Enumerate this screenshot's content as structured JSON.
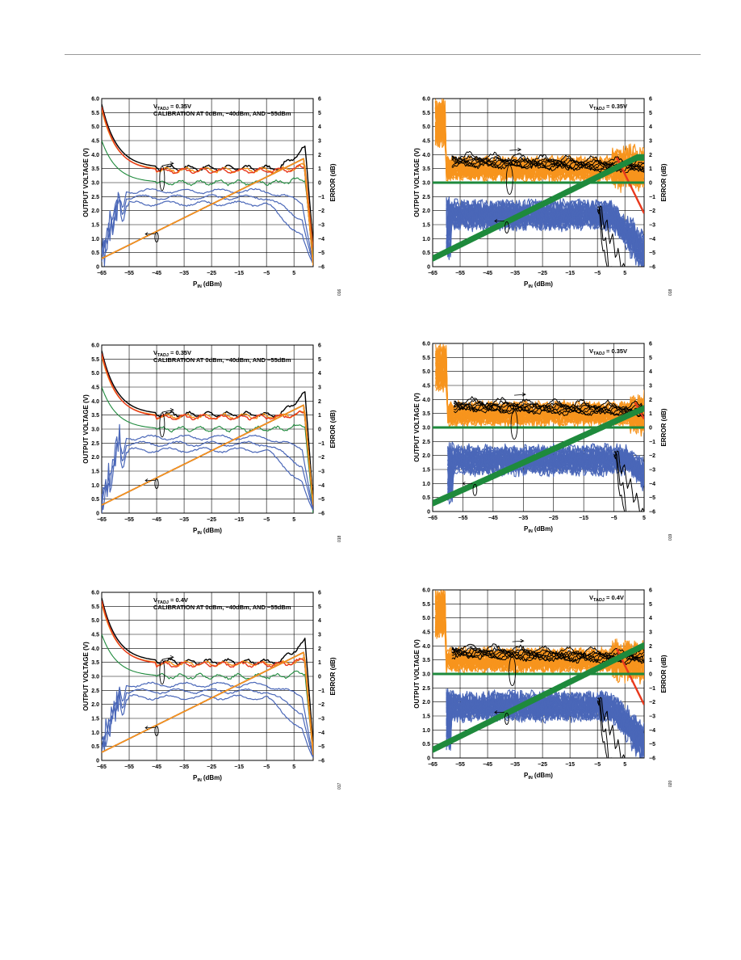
{
  "colors": {
    "black": "#000000",
    "orange": "#f7941d",
    "red": "#e8391d",
    "green": "#1e8a3c",
    "blue": "#4a67b8",
    "grid": "#000000"
  },
  "chart_data": [
    {
      "id": "c1",
      "type": "line",
      "variant": "cal",
      "vtadj_sub": "TADJ",
      "vtadj_value": "= 0.35V",
      "title_line2": "CALIBRATION AT 0dBm, −40dBm, AND −55dBm",
      "xlabel_sub": "IN",
      "xlabel_suffix": "(dBm)",
      "ylabel": "OUTPUT VOLTAGE (V)",
      "y2label": "ERROR (dB)",
      "xlim": [
        -65,
        12
      ],
      "ylim": [
        0,
        6
      ],
      "y2lim": [
        -6,
        6
      ],
      "x_ticks": [
        "−65",
        "−55",
        "−45",
        "−35",
        "−25",
        "−15",
        "−5",
        "5"
      ],
      "x_tick_values": [
        -65,
        -55,
        -45,
        -35,
        -25,
        -15,
        -5,
        5
      ],
      "y_ticks": [
        "0",
        "0.5",
        "1.0",
        "1.5",
        "2.0",
        "2.5",
        "3.0",
        "3.5",
        "4.0",
        "4.5",
        "5.0",
        "5.5",
        "6.0"
      ],
      "y2_ticks": [
        "−6",
        "−5",
        "−4",
        "−3",
        "−2",
        "−1",
        "0",
        "1",
        "2",
        "3",
        "4",
        "5",
        "6"
      ],
      "sat": 3.9,
      "drop": 0.05,
      "err_end": 1.1,
      "figure_code": "016"
    },
    {
      "id": "c2",
      "type": "line",
      "variant": "dist",
      "vtadj_sub": "TADJ",
      "vtadj_value": "= 0.35V",
      "xlabel_sub": "IN",
      "xlabel_suffix": "(dBm)",
      "ylabel": "OUTPUT VOLTAGE (V)",
      "y2label": "ERROR (dB)",
      "xlim": [
        -65,
        12
      ],
      "ylim": [
        0,
        6
      ],
      "y2lim": [
        -6,
        6
      ],
      "x_ticks": [
        "−65",
        "−55",
        "−45",
        "−35",
        "−25",
        "−15",
        "−5",
        "5"
      ],
      "x_tick_values": [
        -65,
        -55,
        -45,
        -35,
        -25,
        -15,
        -5,
        5
      ],
      "y_ticks": [
        "0",
        "0.5",
        "1.0",
        "1.5",
        "2.0",
        "2.5",
        "3.0",
        "3.5",
        "4.0",
        "4.5",
        "5.0",
        "5.5",
        "6.0"
      ],
      "y2_ticks": [
        "−6",
        "−5",
        "−4",
        "−3",
        "−2",
        "−1",
        "0",
        "1",
        "2",
        "3",
        "4",
        "5",
        "6"
      ],
      "sat": 3.9,
      "figure_code": "018"
    },
    {
      "id": "c3",
      "type": "line",
      "variant": "cal",
      "vtadj_sub": "TADJ",
      "vtadj_value": "= 0.35V",
      "title_line2": "CALIBRATION AT 0dBm, −40dBm, AND −55dBm",
      "xlabel_sub": "IN",
      "xlabel_suffix": "(dBm)",
      "ylabel": "OUTPUT VOLTAGE (V)",
      "y2label": "ERROR (dB)",
      "xlim": [
        -65,
        12
      ],
      "ylim": [
        0,
        6
      ],
      "y2lim": [
        -6,
        6
      ],
      "x_ticks": [
        "−65",
        "−55",
        "−45",
        "−35",
        "−25",
        "−15",
        "−5",
        "5"
      ],
      "x_tick_values": [
        -65,
        -55,
        -45,
        -35,
        -25,
        -15,
        -5,
        5
      ],
      "y_ticks": [
        "0",
        "0.5",
        "1.0",
        "1.5",
        "2.0",
        "2.5",
        "3.0",
        "3.5",
        "4.0",
        "4.5",
        "5.0",
        "5.5",
        "6.0"
      ],
      "y2_ticks": [
        "−6",
        "−5",
        "−4",
        "−3",
        "−2",
        "−1",
        "0",
        "1",
        "2",
        "3",
        "4",
        "5",
        "6"
      ],
      "sat": 3.9,
      "drop": 0.3,
      "err_end": 0.3,
      "figure_code": "018"
    },
    {
      "id": "c4",
      "type": "line",
      "variant": "dist",
      "vtadj_sub": "TADJ",
      "vtadj_value": "= 0.35V",
      "xlabel_sub": "IN",
      "xlabel_suffix": "(dBm)",
      "ylabel": "OUTPUT VOLTAGE (V)",
      "y2label": "ERROR (dB)",
      "xlim": [
        -65,
        5
      ],
      "ylim": [
        0,
        6
      ],
      "y2lim": [
        -6,
        6
      ],
      "x_ticks": [
        "−65",
        "−55",
        "−45",
        "−35",
        "−25",
        "−15",
        "−5",
        "5"
      ],
      "x_tick_values": [
        -65,
        -55,
        -45,
        -35,
        -25,
        -15,
        -5,
        5
      ],
      "y_ticks": [
        "0",
        "0.5",
        "1.0",
        "1.5",
        "2.0",
        "2.5",
        "3.0",
        "3.5",
        "4.0",
        "4.5",
        "5.0",
        "5.5",
        "6.0"
      ],
      "y2_ticks": [
        "−6",
        "−5",
        "−4",
        "−3",
        "−2",
        "−1",
        "0",
        "1",
        "2",
        "3",
        "4",
        "5",
        "6"
      ],
      "sat": 3.9,
      "figure_code": "019"
    },
    {
      "id": "c5",
      "type": "line",
      "variant": "cal",
      "vtadj_sub": "TADJ",
      "vtadj_value": "= 0.4V",
      "title_line2": "CALIBRATION AT 0dBm, −40dBm, AND −55dBm",
      "xlabel_sub": "IN",
      "xlabel_suffix": "(dBm)",
      "ylabel": "OUTPUT VOLTAGE (V)",
      "y2label": "ERROR (dB)",
      "xlim": [
        -65,
        12
      ],
      "ylim": [
        0,
        6
      ],
      "y2lim": [
        -6,
        6
      ],
      "x_ticks": [
        "−65",
        "−55",
        "−45",
        "−35",
        "−25",
        "−15",
        "−5",
        "5"
      ],
      "x_tick_values": [
        -65,
        -55,
        -45,
        -35,
        -25,
        -15,
        -5,
        5
      ],
      "y_ticks": [
        "0",
        "0.5",
        "1.0",
        "1.5",
        "2.0",
        "2.5",
        "3.0",
        "3.5",
        "4.0",
        "4.5",
        "5.0",
        "5.5",
        "6.0"
      ],
      "y2_ticks": [
        "−6",
        "−5",
        "−4",
        "−3",
        "−2",
        "−1",
        "0",
        "1",
        "2",
        "3",
        "4",
        "5",
        "6"
      ],
      "sat": 3.95,
      "drop": 0.2,
      "err_end": 0.6,
      "figure_code": "017"
    },
    {
      "id": "c6",
      "type": "line",
      "variant": "dist",
      "vtadj_sub": "TADJ",
      "vtadj_value": "= 0.4V",
      "xlabel_sub": "IN",
      "xlabel_suffix": "(dBm)",
      "ylabel": "OUTPUT VOLTAGE (V)",
      "y2label": "ERROR (dB)",
      "xlim": [
        -65,
        12
      ],
      "ylim": [
        0,
        6
      ],
      "y2lim": [
        -6,
        6
      ],
      "x_ticks": [
        "−65",
        "−55",
        "−45",
        "−35",
        "−25",
        "−15",
        "−5",
        "5"
      ],
      "x_tick_values": [
        -65,
        -55,
        -45,
        -35,
        -25,
        -15,
        -5,
        5
      ],
      "y_ticks": [
        "0",
        "0.5",
        "1.0",
        "1.5",
        "2.0",
        "2.5",
        "3.0",
        "3.5",
        "4.0",
        "4.5",
        "5.0",
        "5.5",
        "6.0"
      ],
      "y2_ticks": [
        "−6",
        "−5",
        "−4",
        "−3",
        "−2",
        "−1",
        "0",
        "1",
        "2",
        "3",
        "4",
        "5",
        "6"
      ],
      "sat": 4.0,
      "figure_code": "020"
    }
  ]
}
